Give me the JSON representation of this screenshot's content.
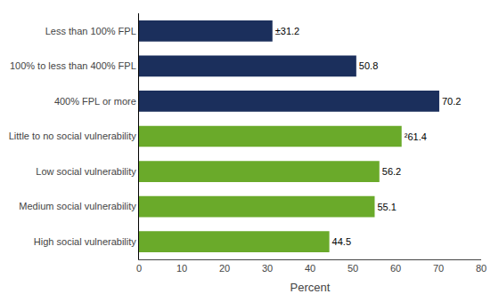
{
  "chart_data": {
    "type": "bar",
    "orientation": "horizontal",
    "categories": [
      "Less than 100% FPL",
      "100% to less than 400% FPL",
      "400% FPL or more",
      "Little to no social vulnerability",
      "Low social vulnerability",
      "Medium social vulnerability",
      "High social vulnerability"
    ],
    "values": [
      31.2,
      50.8,
      70.2,
      61.4,
      56.2,
      55.1,
      44.5
    ],
    "value_labels": [
      "±31.2",
      "50.8",
      "70.2",
      "²61.4",
      "56.2",
      "55.1",
      "44.5"
    ],
    "data_labels": true,
    "colors": [
      "#1b2f5c",
      "#1b2f5c",
      "#1b2f5c",
      "#6aaa2a",
      "#6aaa2a",
      "#6aaa2a",
      "#6aaa2a"
    ],
    "xlabel": "Percent",
    "xlim": [
      0,
      80
    ],
    "xticks": [
      0,
      10,
      20,
      30,
      40,
      50,
      60,
      70,
      80
    ],
    "grid": false
  }
}
